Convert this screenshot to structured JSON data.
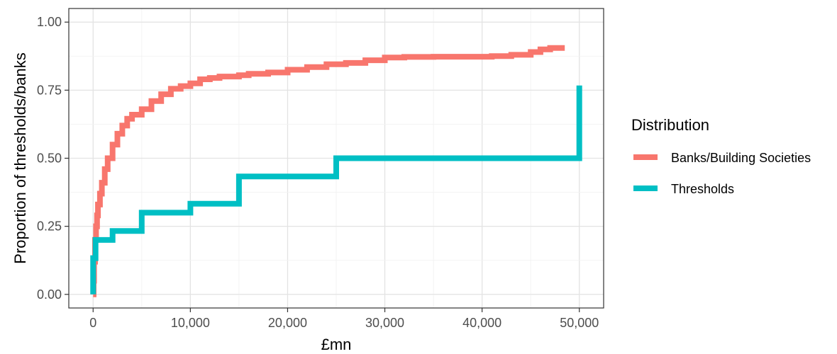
{
  "chart_data": {
    "type": "line",
    "step": true,
    "title": "",
    "xlabel": "£mn",
    "ylabel": "Proportion of thresholds/banks",
    "xlim": [
      -2500,
      52500
    ],
    "ylim": [
      -0.05,
      1.05
    ],
    "x_ticks": [
      0,
      10000,
      20000,
      30000,
      40000,
      50000
    ],
    "x_tick_labels": [
      "0",
      "10,000",
      "20,000",
      "30,000",
      "40,000",
      "50,000"
    ],
    "y_ticks": [
      0,
      0.25,
      0.5,
      0.75,
      1.0
    ],
    "y_tick_labels": [
      "0.00",
      "0.25",
      "0.50",
      "0.75",
      "1.00"
    ],
    "grid": true,
    "legend": {
      "title": "Distribution",
      "position": "right"
    },
    "series": [
      {
        "name": "Banks/Building Societies",
        "color": "#F8766D",
        "points": [
          [
            0,
            0.0
          ],
          [
            50,
            0.05
          ],
          [
            100,
            0.12
          ],
          [
            200,
            0.2
          ],
          [
            300,
            0.25
          ],
          [
            400,
            0.29
          ],
          [
            500,
            0.33
          ],
          [
            700,
            0.37
          ],
          [
            900,
            0.41
          ],
          [
            1200,
            0.46
          ],
          [
            1500,
            0.5
          ],
          [
            2000,
            0.55
          ],
          [
            2500,
            0.59
          ],
          [
            3000,
            0.62
          ],
          [
            3500,
            0.645
          ],
          [
            4000,
            0.66
          ],
          [
            5000,
            0.68
          ],
          [
            6000,
            0.71
          ],
          [
            7000,
            0.735
          ],
          [
            8000,
            0.755
          ],
          [
            9000,
            0.765
          ],
          [
            10000,
            0.775
          ],
          [
            11000,
            0.79
          ],
          [
            12000,
            0.795
          ],
          [
            13000,
            0.8
          ],
          [
            15000,
            0.805
          ],
          [
            16000,
            0.81
          ],
          [
            18000,
            0.815
          ],
          [
            20000,
            0.825
          ],
          [
            22000,
            0.835
          ],
          [
            24000,
            0.845
          ],
          [
            26000,
            0.85
          ],
          [
            28000,
            0.86
          ],
          [
            30000,
            0.87
          ],
          [
            32000,
            0.872
          ],
          [
            35000,
            0.873
          ],
          [
            38000,
            0.873
          ],
          [
            41000,
            0.875
          ],
          [
            43000,
            0.88
          ],
          [
            45000,
            0.89
          ],
          [
            46000,
            0.9
          ],
          [
            47000,
            0.905
          ],
          [
            48500,
            0.905
          ]
        ]
      },
      {
        "name": "Thresholds",
        "color": "#00BFC4",
        "points": [
          [
            0,
            0.0
          ],
          [
            0,
            0.133
          ],
          [
            250,
            0.133
          ],
          [
            250,
            0.2
          ],
          [
            2000,
            0.2
          ],
          [
            2000,
            0.233
          ],
          [
            5000,
            0.233
          ],
          [
            5000,
            0.3
          ],
          [
            10000,
            0.3
          ],
          [
            10000,
            0.333
          ],
          [
            15000,
            0.333
          ],
          [
            15000,
            0.433
          ],
          [
            25000,
            0.433
          ],
          [
            25000,
            0.5
          ],
          [
            50000,
            0.5
          ],
          [
            50000,
            0.767
          ]
        ]
      }
    ]
  }
}
